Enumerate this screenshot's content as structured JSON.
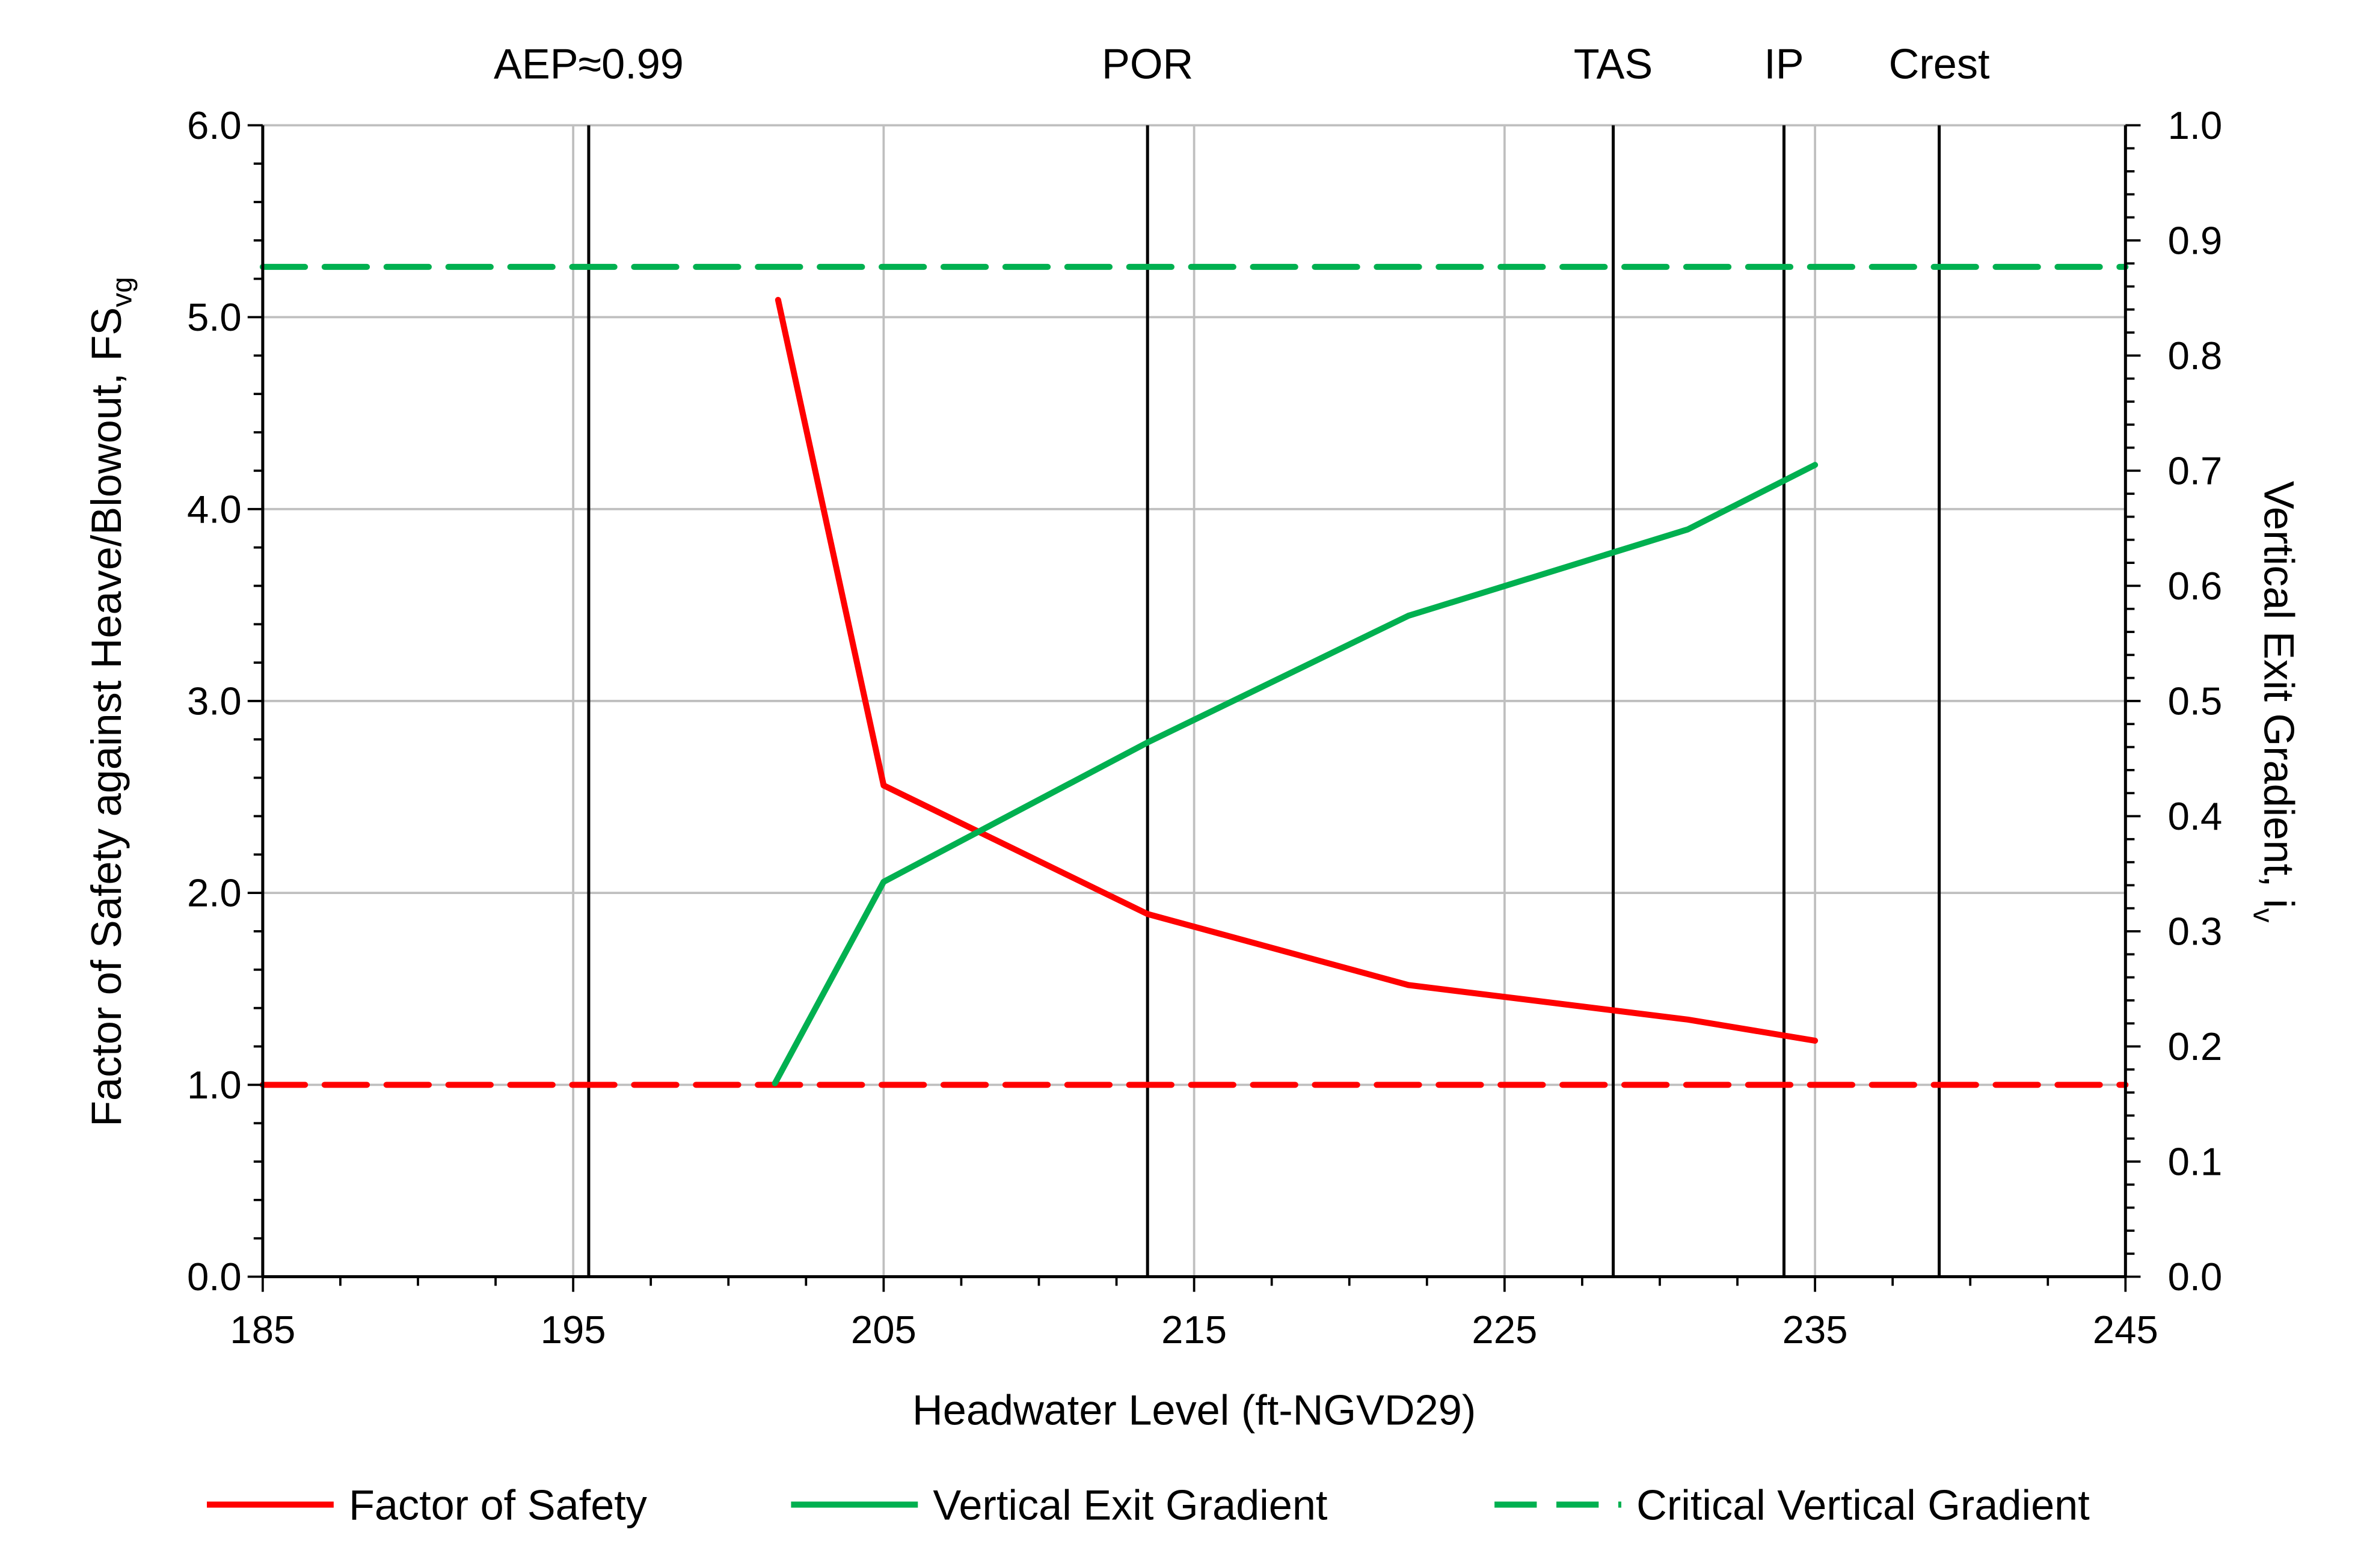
{
  "chart_data": {
    "type": "line",
    "xlabel": "Headwater Level (ft-NGVD29)",
    "ylabel": "Factor of Safety against Heave/Blowout, FS",
    "ylabel_sub": "vg",
    "y2label": "Vertical Exit Gradient, i",
    "y2label_sub": "v",
    "xlim": [
      185,
      245
    ],
    "ylim": [
      0,
      6
    ],
    "y2lim": [
      0,
      1
    ],
    "xticks": [
      "185",
      "195",
      "205",
      "215",
      "225",
      "235",
      "245"
    ],
    "yticks": [
      "0.0",
      "1.0",
      "2.0",
      "3.0",
      "4.0",
      "5.0",
      "6.0"
    ],
    "y2ticks": [
      "0.0",
      "0.1",
      "0.2",
      "0.3",
      "0.4",
      "0.5",
      "0.6",
      "0.7",
      "0.8",
      "0.9",
      "1.0"
    ],
    "grid": true,
    "legend_position": "bottom",
    "series": [
      {
        "name": "Factor of Safety",
        "axis": "left",
        "color": "#ff0000",
        "style": "solid",
        "x": [
          201.6,
          205,
          213.5,
          221.9,
          230.9,
          235
        ],
        "y": [
          5.09,
          2.56,
          1.89,
          1.52,
          1.34,
          1.23
        ]
      },
      {
        "name": "Vertical Exit Gradient",
        "axis": "right",
        "color": "#00b050",
        "style": "solid",
        "x": [
          201.5,
          205,
          213.5,
          221.9,
          230.9,
          235
        ],
        "y": [
          0.168,
          0.343,
          0.464,
          0.574,
          0.649,
          0.705
        ]
      },
      {
        "name": "Critical Vertical Gradient",
        "axis": "right",
        "color": "#00b050",
        "style": "dashed",
        "x": [
          185,
          245
        ],
        "y": [
          0.877,
          0.877
        ]
      }
    ],
    "reference_lines": [
      {
        "axis": "left",
        "y": 1.0,
        "color": "#ff0000",
        "style": "dashed"
      }
    ],
    "vertical_markers": [
      {
        "label": "AEP≈0.99",
        "x": 195.5
      },
      {
        "label": "POR",
        "x": 213.5
      },
      {
        "label": "TAS",
        "x": 228.5
      },
      {
        "label": "IP",
        "x": 234
      },
      {
        "label": "Crest",
        "x": 239
      }
    ]
  }
}
